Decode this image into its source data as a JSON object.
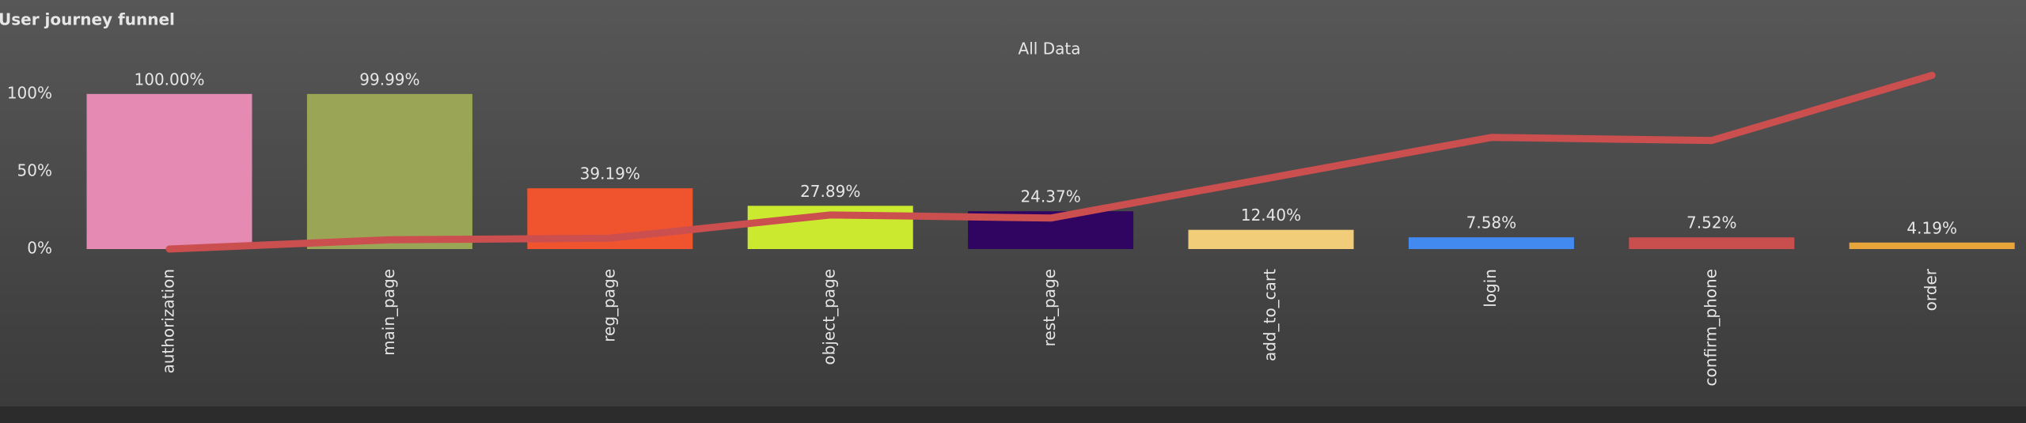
{
  "chart_data": {
    "type": "bar",
    "title": "User journey funnel",
    "subtitle": "All Data",
    "categories": [
      "authorization",
      "main_page",
      "reg_page",
      "object_page",
      "rest_page",
      "add_to_cart",
      "login",
      "confirm_phone",
      "order"
    ],
    "series": [
      {
        "type": "bar",
        "colors": [
          "#e48ab3",
          "#9aa556",
          "#ef542f",
          "#cbe92f",
          "#300461",
          "#f2cd79",
          "#4289f0",
          "#c94f4f",
          "#e8a53a"
        ],
        "values": [
          100,
          99.99,
          39.19,
          27.89,
          24.37,
          12.4,
          7.58,
          7.52,
          4.19
        ],
        "value_labels": [
          "100.00%",
          "99.99%",
          "39.19%",
          "27.89%",
          "24.37%",
          "12.40%",
          "7.58%",
          "7.52%",
          "4.19%"
        ]
      },
      {
        "type": "line",
        "color": "#cc4f50",
        "values": [
          0,
          6,
          7,
          22,
          20,
          46,
          72,
          70,
          112
        ]
      }
    ],
    "ylim": [
      0,
      130
    ],
    "yticks": [
      {
        "value": 0,
        "label": "0%"
      },
      {
        "value": 50,
        "label": "50%"
      },
      {
        "value": 100,
        "label": "100%"
      }
    ],
    "grid": false
  }
}
